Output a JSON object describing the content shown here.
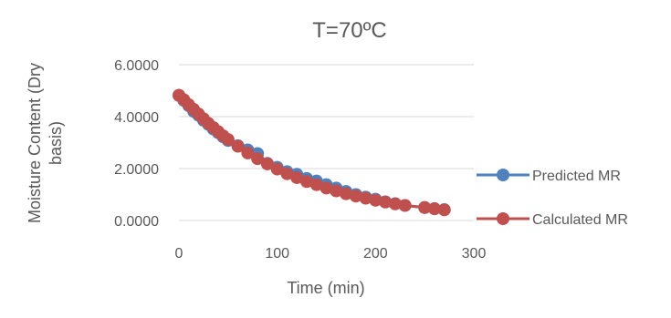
{
  "chart_data": {
    "type": "scatter",
    "title": "T=70ºC",
    "xlabel": "Time (min)",
    "ylabel_line1": "Moisture Content (Dry",
    "ylabel_line2": "basis)",
    "xlim": [
      0,
      300
    ],
    "ylim": [
      0,
      6
    ],
    "x_ticks": [
      0,
      100,
      200,
      300
    ],
    "x_tick_labels": [
      "0",
      "100",
      "200",
      "300"
    ],
    "y_ticks": [
      0,
      2,
      4,
      6
    ],
    "y_tick_labels": [
      "0.0000",
      "2.0000",
      "4.0000",
      "6.0000"
    ],
    "grid": "horizontal",
    "legend_position": "right",
    "series": [
      {
        "name": "Predicted MR",
        "color": "#4f81bd",
        "x": [
          0,
          5,
          10,
          15,
          20,
          25,
          30,
          35,
          40,
          45,
          50,
          60,
          70,
          80,
          90,
          100,
          110,
          120,
          130,
          140,
          150,
          160,
          170,
          180,
          190,
          200,
          210,
          220,
          230,
          250,
          260,
          270
        ],
        "y": [
          4.82,
          4.62,
          4.42,
          4.2,
          4.05,
          3.86,
          3.7,
          3.52,
          3.38,
          3.22,
          3.08,
          2.88,
          2.72,
          2.58,
          2.2,
          2.05,
          1.88,
          1.78,
          1.62,
          1.52,
          1.38,
          1.25,
          1.12,
          1.0,
          0.9,
          0.82,
          0.72,
          0.65,
          0.58,
          0.5,
          0.46,
          0.42
        ]
      },
      {
        "name": "Calculated MR",
        "color": "#c0504d",
        "x": [
          0,
          5,
          10,
          15,
          20,
          25,
          30,
          35,
          40,
          45,
          50,
          60,
          70,
          80,
          90,
          100,
          110,
          120,
          130,
          140,
          150,
          160,
          170,
          180,
          190,
          200,
          210,
          220,
          230,
          250,
          260,
          270
        ],
        "y": [
          4.82,
          4.65,
          4.46,
          4.28,
          4.1,
          3.92,
          3.74,
          3.58,
          3.42,
          3.26,
          3.12,
          2.86,
          2.6,
          2.38,
          2.18,
          1.98,
          1.8,
          1.65,
          1.5,
          1.38,
          1.25,
          1.14,
          1.03,
          0.94,
          0.86,
          0.78,
          0.71,
          0.64,
          0.58,
          0.5,
          0.45,
          0.41
        ]
      }
    ]
  }
}
